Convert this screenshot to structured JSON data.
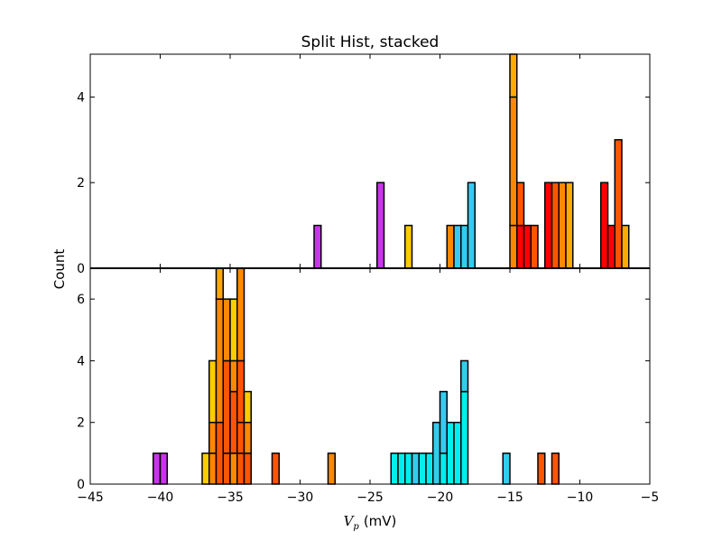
{
  "chart_data": {
    "type": "bar",
    "title": "Split Hist, stacked",
    "ylabel": "Count",
    "xlabel_symbol": "V",
    "xlabel_subscript": "p",
    "xlabel_unit": "(mV)",
    "xlim": [
      -45,
      -5
    ],
    "xticks": [
      -45,
      -40,
      -35,
      -30,
      -25,
      -20,
      -15,
      -10,
      -5
    ],
    "grid": false,
    "panels": [
      {
        "ylim": [
          0,
          5
        ],
        "yticks": [
          0,
          2,
          4
        ],
        "bars": [
          {
            "x0": -29.0,
            "x1": -28.5,
            "stack": [
              {
                "count": 1,
                "color": "#cc33ee"
              }
            ]
          },
          {
            "x0": -24.5,
            "x1": -24.0,
            "stack": [
              {
                "count": 2,
                "color": "#cc33ee"
              }
            ]
          },
          {
            "x0": -22.5,
            "x1": -22.0,
            "stack": [
              {
                "count": 1,
                "color": "#ffcc00"
              }
            ]
          },
          {
            "x0": -19.5,
            "x1": -19.0,
            "stack": [
              {
                "count": 1,
                "color": "#ff8800"
              }
            ]
          },
          {
            "x0": -19.0,
            "x1": -18.5,
            "stack": [
              {
                "count": 1,
                "color": "#33ccee"
              }
            ]
          },
          {
            "x0": -18.5,
            "x1": -18.0,
            "stack": [
              {
                "count": 1,
                "color": "#33ccee"
              }
            ]
          },
          {
            "x0": -18.0,
            "x1": -17.5,
            "stack": [
              {
                "count": 2,
                "color": "#33ccee"
              }
            ]
          },
          {
            "x0": -15.0,
            "x1": -14.5,
            "stack": [
              {
                "count": 1,
                "color": "#ff8800"
              },
              {
                "count": 3,
                "color": "#ff8800"
              },
              {
                "count": 1,
                "color": "#ffaa00"
              }
            ]
          },
          {
            "x0": -14.5,
            "x1": -14.0,
            "stack": [
              {
                "count": 1,
                "color": "#ff0000"
              },
              {
                "count": 1,
                "color": "#ff5500"
              }
            ]
          },
          {
            "x0": -14.0,
            "x1": -13.5,
            "stack": [
              {
                "count": 1,
                "color": "#ff0000"
              }
            ]
          },
          {
            "x0": -13.5,
            "x1": -13.0,
            "stack": [
              {
                "count": 1,
                "color": "#ff5500"
              }
            ]
          },
          {
            "x0": -12.5,
            "x1": -12.0,
            "stack": [
              {
                "count": 2,
                "color": "#ff0000"
              }
            ]
          },
          {
            "x0": -12.0,
            "x1": -11.5,
            "stack": [
              {
                "count": 2,
                "color": "#ff5500"
              }
            ]
          },
          {
            "x0": -11.5,
            "x1": -11.0,
            "stack": [
              {
                "count": 2,
                "color": "#ff8800"
              }
            ]
          },
          {
            "x0": -11.0,
            "x1": -10.5,
            "stack": [
              {
                "count": 2,
                "color": "#ffaa00"
              }
            ]
          },
          {
            "x0": -8.5,
            "x1": -8.0,
            "stack": [
              {
                "count": 2,
                "color": "#ff0000"
              }
            ]
          },
          {
            "x0": -8.0,
            "x1": -7.5,
            "stack": [
              {
                "count": 1,
                "color": "#ff0000"
              }
            ]
          },
          {
            "x0": -7.5,
            "x1": -7.0,
            "stack": [
              {
                "count": 3,
                "color": "#ff5500"
              }
            ]
          },
          {
            "x0": -7.0,
            "x1": -6.5,
            "stack": [
              {
                "count": 1,
                "color": "#ffaa00"
              }
            ]
          }
        ]
      },
      {
        "ylim": [
          0,
          7
        ],
        "yticks": [
          0,
          2,
          4,
          6
        ],
        "bars": [
          {
            "x0": -40.5,
            "x1": -40.0,
            "stack": [
              {
                "count": 1,
                "color": "#cc33ee"
              }
            ]
          },
          {
            "x0": -40.0,
            "x1": -39.5,
            "stack": [
              {
                "count": 1,
                "color": "#cc33ee"
              }
            ]
          },
          {
            "x0": -37.0,
            "x1": -36.5,
            "stack": [
              {
                "count": 1,
                "color": "#ffcc00"
              }
            ]
          },
          {
            "x0": -36.5,
            "x1": -36.0,
            "stack": [
              {
                "count": 1,
                "color": "#ff8800"
              },
              {
                "count": 1,
                "color": "#ff8800"
              },
              {
                "count": 2,
                "color": "#ffcc00"
              }
            ]
          },
          {
            "x0": -36.0,
            "x1": -35.5,
            "stack": [
              {
                "count": 2,
                "color": "#ff5500"
              },
              {
                "count": 4,
                "color": "#ff8800"
              },
              {
                "count": 1,
                "color": "#ffaa00"
              }
            ]
          },
          {
            "x0": -35.5,
            "x1": -35.0,
            "stack": [
              {
                "count": 1,
                "color": "#ff5500"
              },
              {
                "count": 3,
                "color": "#ff5500"
              },
              {
                "count": 2,
                "color": "#ff8800"
              }
            ]
          },
          {
            "x0": -35.0,
            "x1": -34.5,
            "stack": [
              {
                "count": 1,
                "color": "#ff8800"
              },
              {
                "count": 2,
                "color": "#ff5500"
              },
              {
                "count": 1,
                "color": "#ff8800"
              },
              {
                "count": 2,
                "color": "#ffcc00"
              }
            ]
          },
          {
            "x0": -34.5,
            "x1": -34.0,
            "stack": [
              {
                "count": 1,
                "color": "#ff5500"
              },
              {
                "count": 1,
                "color": "#ff5500"
              },
              {
                "count": 2,
                "color": "#ff5500"
              },
              {
                "count": 3,
                "color": "#ff8800"
              }
            ]
          },
          {
            "x0": -34.0,
            "x1": -33.5,
            "stack": [
              {
                "count": 1,
                "color": "#ff5500"
              },
              {
                "count": 1,
                "color": "#ff8800"
              },
              {
                "count": 1,
                "color": "#ffcc00"
              }
            ]
          },
          {
            "x0": -32.0,
            "x1": -31.5,
            "stack": [
              {
                "count": 1,
                "color": "#ff5500"
              }
            ]
          },
          {
            "x0": -28.0,
            "x1": -27.5,
            "stack": [
              {
                "count": 1,
                "color": "#ff8800"
              }
            ]
          },
          {
            "x0": -23.5,
            "x1": -23.0,
            "stack": [
              {
                "count": 1,
                "color": "#00eeee"
              }
            ]
          },
          {
            "x0": -23.0,
            "x1": -22.5,
            "stack": [
              {
                "count": 1,
                "color": "#00eeee"
              }
            ]
          },
          {
            "x0": -22.5,
            "x1": -22.0,
            "stack": [
              {
                "count": 1,
                "color": "#00eeee"
              }
            ]
          },
          {
            "x0": -22.0,
            "x1": -21.5,
            "stack": [
              {
                "count": 1,
                "color": "#33ccee"
              }
            ]
          },
          {
            "x0": -21.5,
            "x1": -21.0,
            "stack": [
              {
                "count": 1,
                "color": "#00eeee"
              }
            ]
          },
          {
            "x0": -21.0,
            "x1": -20.5,
            "stack": [
              {
                "count": 1,
                "color": "#00eeee"
              }
            ]
          },
          {
            "x0": -20.5,
            "x1": -20.0,
            "stack": [
              {
                "count": 2,
                "color": "#33ccee"
              }
            ]
          },
          {
            "x0": -20.0,
            "x1": -19.5,
            "stack": [
              {
                "count": 1,
                "color": "#00eeee"
              },
              {
                "count": 2,
                "color": "#33ccee"
              }
            ]
          },
          {
            "x0": -19.5,
            "x1": -19.0,
            "stack": [
              {
                "count": 2,
                "color": "#00eeee"
              }
            ]
          },
          {
            "x0": -19.0,
            "x1": -18.5,
            "stack": [
              {
                "count": 2,
                "color": "#00eeee"
              }
            ]
          },
          {
            "x0": -18.5,
            "x1": -18.0,
            "stack": [
              {
                "count": 3,
                "color": "#00eeee"
              },
              {
                "count": 1,
                "color": "#33ccee"
              }
            ]
          },
          {
            "x0": -15.5,
            "x1": -15.0,
            "stack": [
              {
                "count": 1,
                "color": "#33ccee"
              }
            ]
          },
          {
            "x0": -13.0,
            "x1": -12.5,
            "stack": [
              {
                "count": 1,
                "color": "#ff5500"
              }
            ]
          },
          {
            "x0": -12.0,
            "x1": -11.5,
            "stack": [
              {
                "count": 1,
                "color": "#ff5500"
              }
            ]
          }
        ]
      }
    ]
  }
}
